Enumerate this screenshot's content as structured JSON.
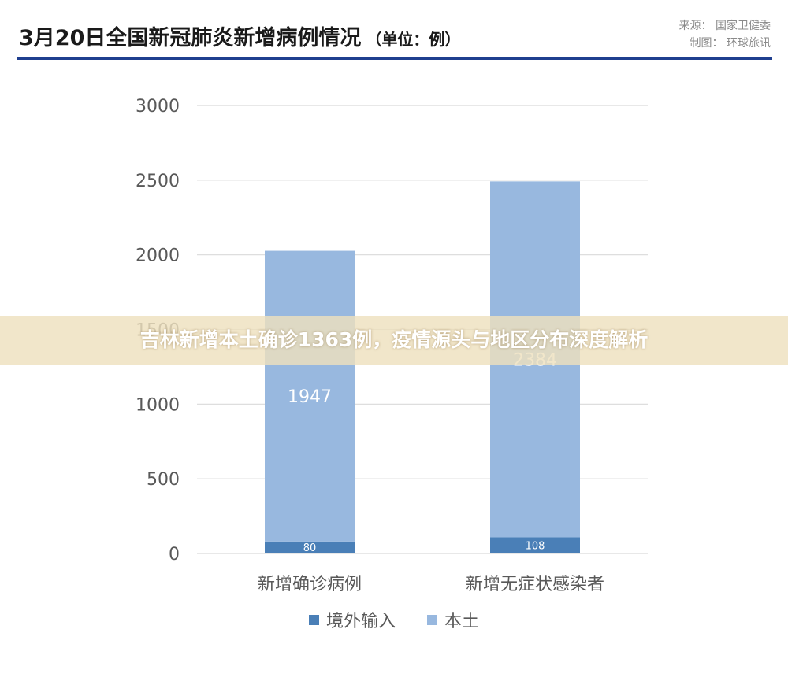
{
  "header": {
    "title": "3月20日全国新冠肺炎新增病例情况",
    "unit": "（单位：例）",
    "source_line": "来源：  国家卫健委",
    "producer_line": "制图：  环球旅讯"
  },
  "banner": {
    "text": "吉林新增本土确诊1363例，疫情源头与地区分布深度解析"
  },
  "colors": {
    "imported": "#4a7fb7",
    "local": "#98b8df",
    "title_rule": "#1f3f8f",
    "grid": "#d9d9d9",
    "axis_text": "#595959"
  },
  "chart_data": {
    "type": "bar",
    "stacked": true,
    "categories": [
      "新增确诊病例",
      "新增无症状感染者"
    ],
    "series": [
      {
        "name": "境外输入",
        "values": [
          80,
          108
        ]
      },
      {
        "name": "本土",
        "values": [
          1947,
          2384
        ]
      }
    ],
    "data_labels": [
      [
        "80",
        "108"
      ],
      [
        "1947",
        "2384"
      ]
    ],
    "ylim": [
      0,
      3000
    ],
    "yticks": [
      0,
      500,
      1000,
      1500,
      2000,
      2500,
      3000
    ],
    "grid": true,
    "legend_position": "bottom"
  }
}
